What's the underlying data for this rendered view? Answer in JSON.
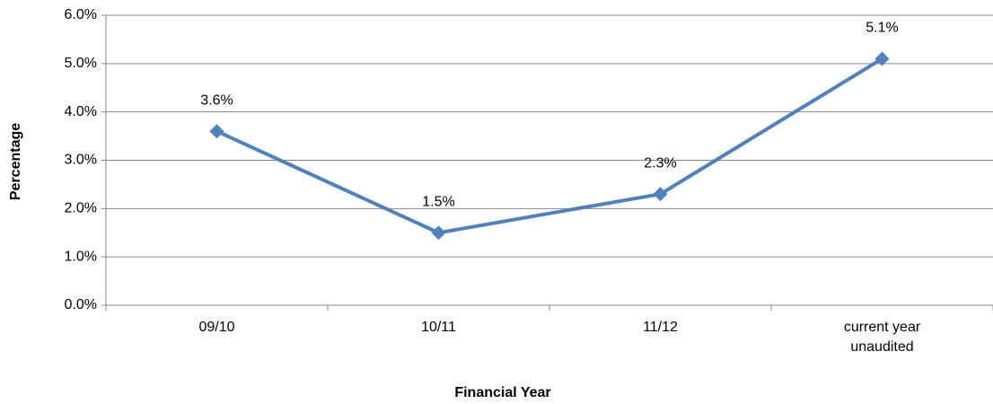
{
  "chart_data": {
    "type": "line",
    "x_label": "Financial Year",
    "y_label": "Percentage",
    "categories": [
      "09/10",
      "10/11",
      "11/12",
      "current year unaudited"
    ],
    "series": [
      {
        "name": "Percentage",
        "color": "#4f81bd",
        "values": [
          3.6,
          1.5,
          2.3,
          5.1
        ],
        "value_labels": [
          "3.6%",
          "1.5%",
          "2.3%",
          "5.1%"
        ]
      }
    ],
    "ylim": [
      0,
      6
    ],
    "yticks": [
      {
        "value": 0,
        "label": "0.0%"
      },
      {
        "value": 1,
        "label": "1.0%"
      },
      {
        "value": 2,
        "label": "2.0%"
      },
      {
        "value": 3,
        "label": "3.0%"
      },
      {
        "value": 4,
        "label": "4.0%"
      },
      {
        "value": 5,
        "label": "5.0%"
      },
      {
        "value": 6,
        "label": "6.0%"
      }
    ],
    "grid": true,
    "legend": false
  }
}
